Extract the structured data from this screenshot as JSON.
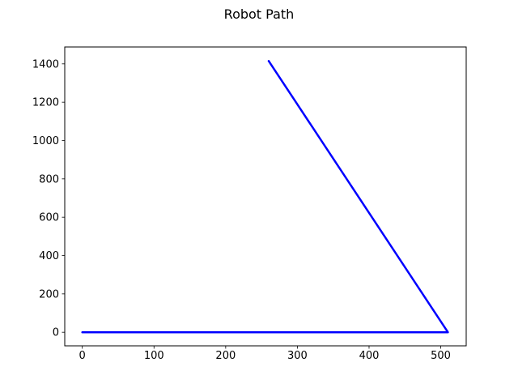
{
  "chart_data": {
    "type": "line",
    "title": "Robot Path",
    "xlabel": "",
    "ylabel": "",
    "xlim": [
      -24.5,
      535.5
    ],
    "ylim": [
      -71,
      1488
    ],
    "x_ticks": [
      0,
      100,
      200,
      300,
      400,
      500
    ],
    "y_ticks": [
      0,
      200,
      400,
      600,
      800,
      1000,
      1200,
      1400
    ],
    "x_tick_labels": [
      "0",
      "100",
      "200",
      "300",
      "400",
      "500"
    ],
    "y_tick_labels": [
      "0",
      "200",
      "400",
      "600",
      "800",
      "1000",
      "1200",
      "1400"
    ],
    "grid": false,
    "legend": "none",
    "series": [
      {
        "color": "#0000ff",
        "x": [
          0,
          510,
          260
        ],
        "y": [
          0,
          0,
          1415
        ]
      }
    ]
  }
}
